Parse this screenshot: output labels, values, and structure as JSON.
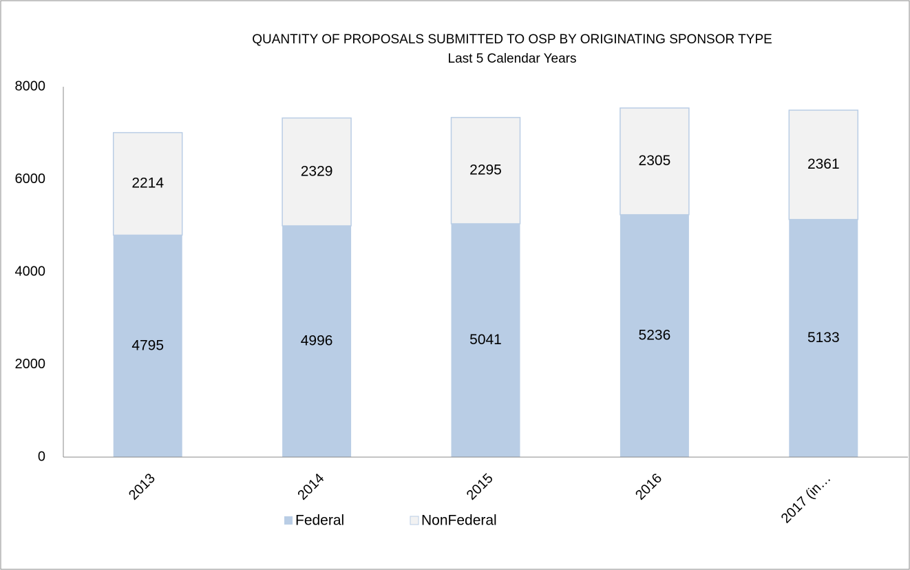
{
  "chart_data": {
    "type": "stacked_bar",
    "title": "QUANTITY OF PROPOSALS SUBMITTED TO OSP BY  ORIGINATING SPONSOR TYPE",
    "subtitle": "Last 5 Calendar Years",
    "categories": [
      "2013",
      "2014",
      "2015",
      "2016",
      "2017 (in…"
    ],
    "series": [
      {
        "name": "Federal",
        "color": "#b9cde5",
        "values": [
          4795,
          4996,
          5041,
          5236,
          5133
        ]
      },
      {
        "name": "NonFederal",
        "color": "#f2f2f2",
        "values": [
          2214,
          2329,
          2295,
          2305,
          2361
        ]
      }
    ],
    "ylim": [
      0,
      8000
    ],
    "yticks": [
      0,
      2000,
      4000,
      6000,
      8000
    ],
    "grid": false,
    "legend": "bottom"
  }
}
